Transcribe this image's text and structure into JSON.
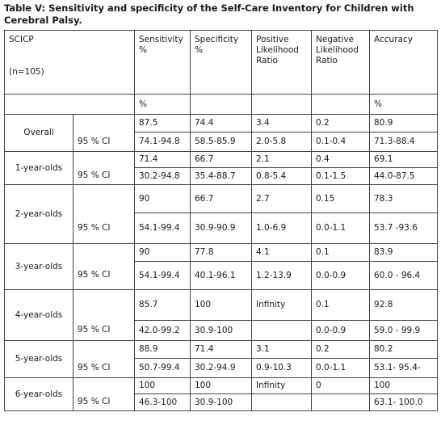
{
  "title": "Table V: Sensitivity and specificity of the Self-Care Inventory for Children with Cerebral Palsy.",
  "header": {
    "col0_line1": "SCICP",
    "col0_line2": "(n=105)",
    "sensitivity": "Sensitivity %",
    "specificity": "Specificity %",
    "plr": "Positive Likelihood Ratio",
    "nlr": "Negative Likelihood Ratio",
    "accuracy": "Accuracy"
  },
  "units": {
    "sensitivity": "%",
    "accuracy": "%"
  },
  "ci_label": "95 % CI",
  "rows": [
    {
      "label": "Overall",
      "sensitivity": "87.5",
      "specificity": "74.4",
      "plr": "3.4",
      "nlr": "0.2",
      "accuracy": "80.9",
      "ci": {
        "sensitivity": "74.1-94.8",
        "specificity": "58.5-85.9",
        "plr": "2.0-5.8",
        "nlr": "0.1-0.4",
        "accuracy": "71.3-88.4"
      }
    },
    {
      "label": "1-year-olds",
      "sensitivity": "71.4",
      "specificity": "66.7",
      "plr": "2.1",
      "nlr": "0.4",
      "accuracy": "69.1",
      "ci": {
        "sensitivity": "30.2-94.8",
        "specificity": "35.4-88.7",
        "plr": "0.8-5.4",
        "nlr": "0.1-1.5",
        "accuracy": "44.0-87.5"
      }
    },
    {
      "label": "2-year-olds",
      "sensitivity": "90",
      "specificity": "66.7",
      "plr": "2.7",
      "nlr": "0.15",
      "accuracy": "78.3",
      "ci": {
        "sensitivity": "54.1-99.4",
        "specificity": "30.9-90.9",
        "plr": "1.0-6.9",
        "nlr": "0.0-1.1",
        "accuracy": "53.7 -93.6"
      }
    },
    {
      "label": "3-year-olds",
      "sensitivity": "90",
      "specificity": "77.8",
      "plr": "4.1",
      "nlr": "0.1",
      "accuracy": "83.9",
      "ci": {
        "sensitivity": "54.1-99.4",
        "specificity": "40.1-96.1",
        "plr": "1.2-13.9",
        "nlr": "0.0-0.9",
        "accuracy": "60.0 - 96.4"
      }
    },
    {
      "label": "4-year-olds",
      "sensitivity": "85.7",
      "specificity": "100",
      "plr": "Infinity",
      "nlr": "0.1",
      "accuracy": "92.8",
      "ci": {
        "sensitivity": "42.0-99.2",
        "specificity": "30.9-100",
        "plr": "",
        "nlr": "0.0-0.9",
        "accuracy": "59.0 - 99.9"
      }
    },
    {
      "label": "5-year-olds",
      "sensitivity": "88.9",
      "specificity": "71.4",
      "plr": "3.1",
      "nlr": "0.2",
      "accuracy": "80.2",
      "ci": {
        "sensitivity": "50.7-99.4",
        "specificity": "30.2-94.9",
        "plr": "0.9-10.3",
        "nlr": "0.0-1.1",
        "accuracy": "53.1- 95.4-"
      }
    },
    {
      "label": "6-year-olds",
      "sensitivity": "100",
      "specificity": "100",
      "plr": "Infinity",
      "nlr": "0",
      "accuracy": "100",
      "ci": {
        "sensitivity": "46.3-100",
        "specificity": "30.9-100",
        "plr": "",
        "nlr": "",
        "accuracy": "63.1- 100.0"
      }
    }
  ]
}
